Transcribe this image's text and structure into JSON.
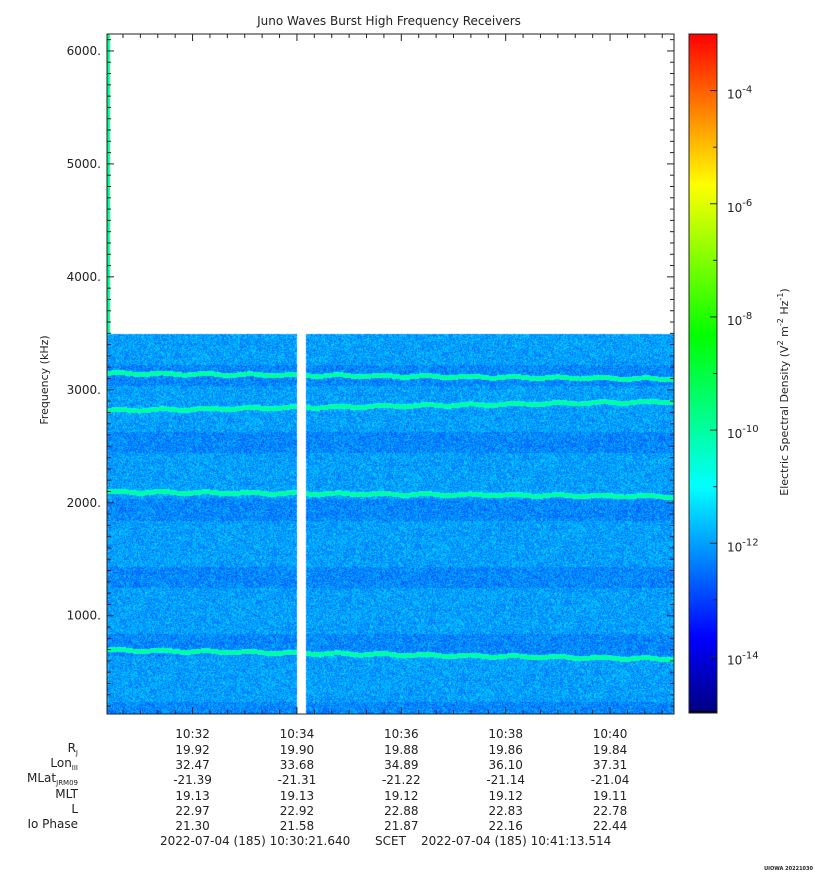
{
  "chart_data": {
    "type": "heatmap",
    "title": "Juno Waves Burst High Frequency Receivers",
    "ylabel": "Frequency (kHz)",
    "colorbar_label": "Electric Spectral Density (V^2 m^-2 Hz^-1)",
    "y_ticks": [
      "1000.",
      "2000.",
      "3000.",
      "4000.",
      "5000.",
      "6000."
    ],
    "y_tick_values": [
      1000,
      2000,
      3000,
      4000,
      5000,
      6000
    ],
    "ylim": [
      130,
      6150
    ],
    "x_ticks": [
      "10:32",
      "10:34",
      "10:36",
      "10:38",
      "10:40"
    ],
    "xlim": [
      "10:30:21.640",
      "10:41:13.514"
    ],
    "data_upper_frequency_khz": 3500,
    "data_gap": [
      "10:34:00",
      "10:34:10"
    ],
    "colorbar": {
      "scale": "log",
      "range_exponent": [
        -15,
        -3
      ],
      "ticks": [
        {
          "base": "10",
          "exp": "-4"
        },
        {
          "base": "10",
          "exp": "-6"
        },
        {
          "base": "10",
          "exp": "-8"
        },
        {
          "base": "10",
          "exp": "-10"
        },
        {
          "base": "10",
          "exp": "-12"
        },
        {
          "base": "10",
          "exp": "-14"
        }
      ],
      "tick_exponents": [
        -4,
        -6,
        -8,
        -10,
        -12,
        -14
      ],
      "colors": [
        "#000080",
        "#0000ff",
        "#0080ff",
        "#00ffff",
        "#00ff80",
        "#00ff00",
        "#80ff00",
        "#ffff00",
        "#ff8000",
        "#ff0000"
      ]
    },
    "emission_lines_khz": [
      {
        "start": 3150,
        "end": 3100
      },
      {
        "start": 2820,
        "end": 2900
      },
      {
        "start": 2100,
        "end": 2060
      },
      {
        "start": 700,
        "end": 620
      }
    ],
    "background_level_exponent": -12
  },
  "ephemeris": {
    "labels": [
      "R",
      "Lon",
      "MLat",
      "MLT",
      "L",
      "Io Phase"
    ],
    "subscripts": [
      "J",
      "III",
      "JRM09",
      "",
      "",
      ""
    ],
    "values": [
      [
        "19.92",
        "19.90",
        "19.88",
        "19.86",
        "19.84"
      ],
      [
        "32.47",
        "33.68",
        "34.89",
        "36.10",
        "37.31"
      ],
      [
        "-21.39",
        "-21.31",
        "-21.22",
        "-21.14",
        "-21.04"
      ],
      [
        "19.13",
        "19.13",
        "19.12",
        "19.12",
        "19.11"
      ],
      [
        "22.97",
        "22.92",
        "22.88",
        "22.83",
        "22.78"
      ],
      [
        "21.30",
        "21.58",
        "21.87",
        "22.16",
        "22.44"
      ]
    ]
  },
  "footer": {
    "start": "2022-07-04 (185) 10:30:21.640",
    "scet": "SCET",
    "end": "2022-07-04 (185) 10:41:13.514"
  },
  "credit": "UIOWA 20221030"
}
